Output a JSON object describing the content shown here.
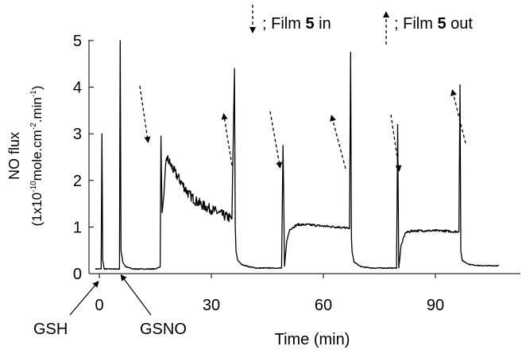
{
  "chart_data": {
    "type": "line",
    "xlabel": "Time (min)",
    "ylabel_line1": "NO flux",
    "ylabel_line2_parts": {
      "a": "(1x10",
      "a_sup": "-10",
      "b": "mole.cm",
      "b_sup": "-2",
      "c": ".min",
      "c_sup": "-1",
      "d": ")"
    },
    "xlim": [
      -5,
      108
    ],
    "ylim": [
      0,
      5
    ],
    "x_ticks": [
      0,
      30,
      60,
      90
    ],
    "y_ticks": [
      0,
      1,
      2,
      3,
      4,
      5
    ],
    "legend": {
      "in_prefix": "; Film ",
      "in_bold": "5",
      "in_suffix": " in",
      "out_prefix": "; Film ",
      "out_bold": "5",
      "out_suffix": " out"
    },
    "annotations": [
      {
        "label": "GSH",
        "x": 0
      },
      {
        "label": "GSNO",
        "x": 5
      }
    ],
    "film_in_times": [
      17,
      49,
      80
    ],
    "film_out_times": [
      35,
      65,
      96
    ],
    "series": [
      {
        "x": [
          -1,
          0.5,
          0.7,
          0.9,
          1.3,
          2,
          4,
          5.4,
          5.6,
          5.8,
          6.3,
          7,
          9,
          12,
          15,
          16.3,
          16.5,
          16.8,
          17.2,
          18,
          20,
          22,
          24,
          26,
          28,
          30,
          32,
          34,
          35.5,
          36.2,
          36.4,
          36.6,
          37,
          38,
          40,
          42,
          44,
          46,
          48,
          48.8,
          49.2,
          49.6,
          50.2,
          51,
          53,
          56,
          60,
          64,
          66,
          67,
          67.3,
          67.5,
          67.7,
          68.2,
          70,
          73,
          76,
          78.5,
          79.6,
          79.9,
          80.2,
          80.8,
          82,
          84,
          88,
          92,
          95,
          96.3,
          96.6,
          96.8,
          97.2,
          99,
          102,
          105,
          107
        ],
        "y": [
          0.1,
          0.1,
          3.0,
          0.3,
          0.1,
          0.1,
          0.1,
          0.1,
          5.0,
          0.5,
          0.25,
          0.15,
          0.1,
          0.1,
          0.1,
          0.15,
          2.95,
          1.3,
          1.6,
          2.5,
          2.2,
          1.95,
          1.7,
          1.55,
          1.45,
          1.38,
          1.3,
          1.22,
          1.18,
          4.4,
          1.0,
          0.5,
          0.3,
          0.2,
          0.15,
          0.12,
          0.12,
          0.12,
          0.12,
          0.12,
          2.75,
          0.15,
          0.7,
          0.95,
          1.05,
          1.05,
          1.02,
          1.0,
          0.98,
          0.97,
          4.75,
          0.8,
          0.45,
          0.25,
          0.15,
          0.12,
          0.12,
          0.12,
          0.12,
          3.2,
          0.12,
          0.6,
          0.88,
          0.92,
          0.92,
          0.92,
          0.9,
          0.9,
          4.05,
          0.5,
          0.28,
          0.2,
          0.17,
          0.17,
          0.17
        ]
      }
    ]
  }
}
